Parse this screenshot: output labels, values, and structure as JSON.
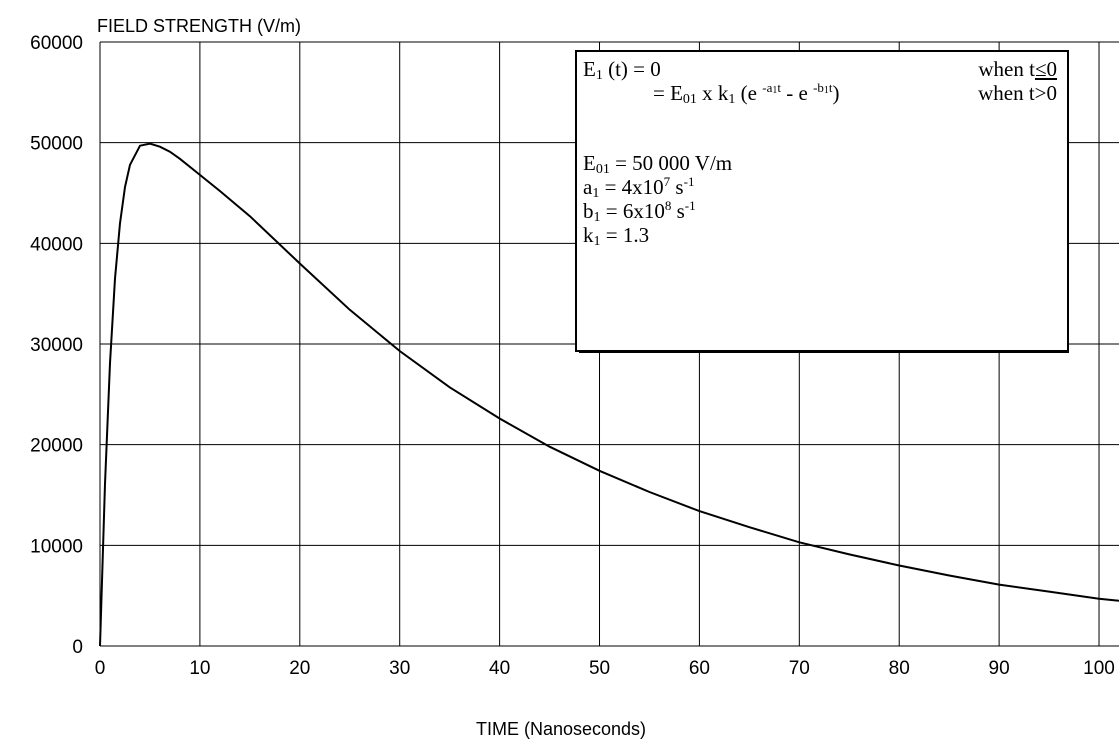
{
  "chart_data": {
    "type": "line",
    "title": "",
    "ylabel": "FIELD STRENGTH (V/m)",
    "xlabel": "TIME (Nanoseconds)",
    "xlim": [
      0,
      102
    ],
    "ylim": [
      0,
      60000
    ],
    "x_ticks": [
      "0",
      "10",
      "20",
      "30",
      "40",
      "50",
      "60",
      "70",
      "80",
      "90",
      "100"
    ],
    "y_ticks": [
      "0",
      "10000",
      "20000",
      "30000",
      "40000",
      "50000",
      "60000"
    ],
    "grid": true,
    "series": [
      {
        "x": [
          0,
          0.5,
          1,
          1.5,
          2,
          2.5,
          3,
          4,
          5,
          6,
          7,
          8,
          10,
          12,
          15,
          20,
          25,
          30,
          35,
          40,
          45,
          50,
          55,
          60,
          65,
          70,
          75,
          80,
          85,
          90,
          95,
          100,
          102
        ],
        "y": [
          0,
          16100,
          28100,
          36500,
          42000,
          45600,
          47800,
          49700,
          49900,
          49600,
          49100,
          48400,
          46800,
          45200,
          42700,
          38000,
          33400,
          29300,
          25700,
          22600,
          19800,
          17400,
          15300,
          13400,
          11800,
          10300,
          9100,
          8000,
          7000,
          6100,
          5400,
          4700,
          4500
        ]
      }
    ]
  },
  "annotation": {
    "e1_label": "E",
    "e1_sub": "1",
    "e1_def": " (t) = 0",
    "when_le": "when t",
    "le_zero": "≤0",
    "eq_prefix": "= E",
    "e01_sub": "01",
    "x_k": " x k",
    "k_sub": "1",
    "paren_open": " (e ",
    "exp1_pre": "-a",
    "exp_sub": "1",
    "exp1_post": "t",
    "minus_e": " - e ",
    "exp2_pre": "-b",
    "exp2_post": "t",
    "paren_close": ")",
    "when_gt": "when t>0",
    "e01_label": "E",
    "e01_label_sub": "01",
    "e01_value": " =  50 000 V/m",
    "a1_label": "a",
    "a1_sub": "1",
    "a1_value": " = 4x10",
    "a1_exp": "7",
    "a1_unit": " s",
    "a1_unit_exp": "-1",
    "b1_label": "b",
    "b1_sub": "1",
    "b1_value": " = 6x10",
    "b1_exp": "8",
    "b1_unit": " s",
    "b1_unit_exp": "-1",
    "k1_label": "k",
    "k1_sub": "1",
    "k1_value": " = 1.3"
  }
}
